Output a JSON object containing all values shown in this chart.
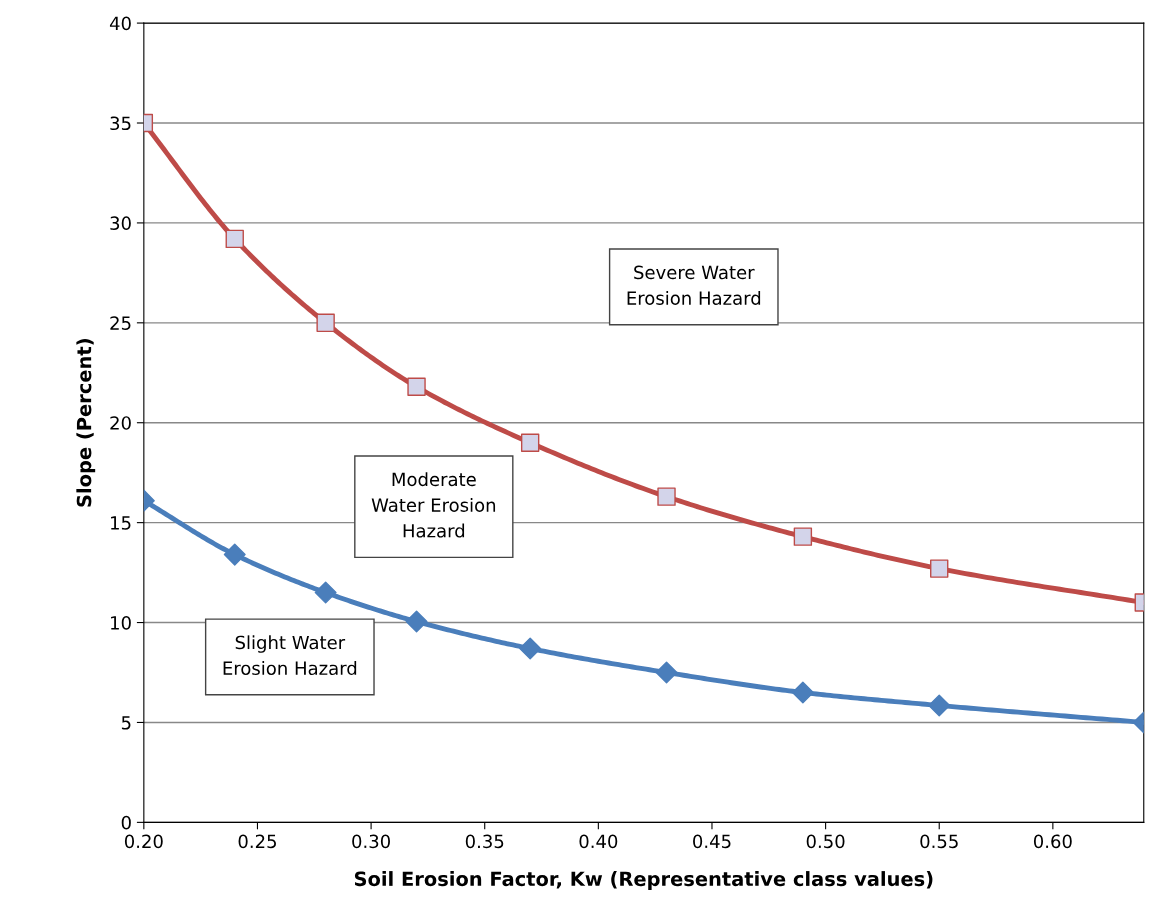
{
  "chart_data": {
    "type": "line",
    "xlabel": "Soil Erosion Factor, Kw (Representative class values)",
    "ylabel": "Slope (Percent)",
    "x": [
      0.2,
      0.24,
      0.28,
      0.32,
      0.37,
      0.43,
      0.49,
      0.55,
      0.64
    ],
    "series": [
      {
        "color": "#be4b48",
        "marker": "square",
        "values": [
          35,
          29.2,
          25,
          21.8,
          19,
          16.3,
          14.3,
          12.7,
          11
        ]
      },
      {
        "color": "#4a7ebb",
        "marker": "diamond",
        "values": [
          16.1,
          13.4,
          11.5,
          10.05,
          8.7,
          7.5,
          6.5,
          5.85,
          5.0
        ]
      }
    ],
    "xlim": [
      0.2,
      0.64
    ],
    "xticks": [
      {
        "value": 0.2,
        "label": "0.20"
      },
      {
        "value": 0.25,
        "label": "0.25"
      },
      {
        "value": 0.3,
        "label": "0.30"
      },
      {
        "value": 0.35,
        "label": "0.35"
      },
      {
        "value": 0.4,
        "label": "0.40"
      },
      {
        "value": 0.45,
        "label": "0.45"
      },
      {
        "value": 0.5,
        "label": "0.50"
      },
      {
        "value": 0.55,
        "label": "0.55"
      },
      {
        "value": 0.6,
        "label": "0.60"
      }
    ],
    "ylim": [
      0,
      40
    ],
    "yticks": [
      0,
      5,
      10,
      15,
      20,
      25,
      30,
      35,
      40
    ],
    "grid": "y",
    "annotations": [
      "Severe Water\nErosion Hazard",
      "Moderate\nWater Erosion\nHazard",
      "Slight Water\nErosion Hazard"
    ]
  }
}
